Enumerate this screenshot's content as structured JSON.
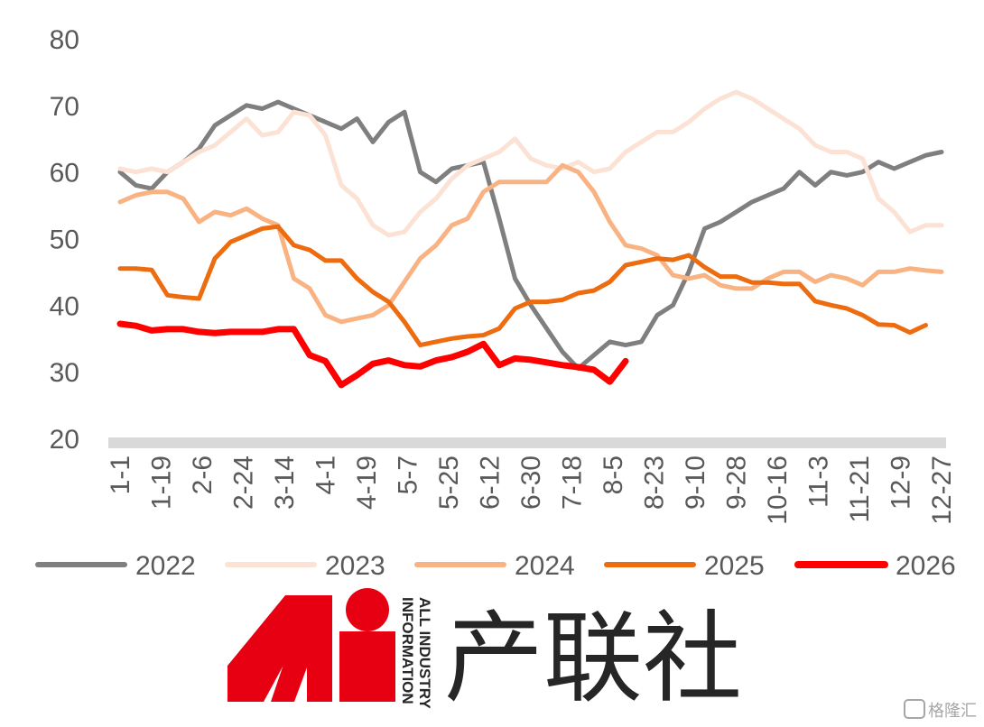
{
  "chart_data": {
    "type": "line",
    "title": "",
    "xlabel": "",
    "ylabel": "",
    "ylim": [
      20,
      80
    ],
    "yticks": [
      20,
      30,
      40,
      50,
      60,
      70,
      80
    ],
    "grid": false,
    "legend_position": "bottom",
    "x_tick_labels": [
      "1-1",
      "1-19",
      "2-6",
      "2-24",
      "3-14",
      "4-1",
      "4-19",
      "5-7",
      "5-25",
      "6-12",
      "6-30",
      "7-18",
      "8-5",
      "8-23",
      "9-10",
      "9-28",
      "10-16",
      "11-3",
      "11-21",
      "12-9",
      "12-27"
    ],
    "x_points_per_year": 53,
    "series": [
      {
        "name": "2022",
        "color": "#7f7f7f",
        "width": 5,
        "values": [
          60,
          58,
          57.5,
          60,
          61.5,
          63.5,
          67,
          68.5,
          70,
          69.5,
          70.5,
          69.5,
          68.5,
          67.5,
          66.5,
          68,
          64.5,
          67.5,
          69,
          60,
          58.5,
          60.5,
          61,
          61.5,
          53,
          44,
          40,
          36.5,
          33,
          30.5,
          32.5,
          34.5,
          34,
          34.5,
          38.5,
          40,
          45,
          51.5,
          52.5,
          54,
          55.5,
          56.5,
          57.5,
          60,
          58,
          60,
          59.5,
          60,
          61.5,
          60.5,
          61.5,
          62.5,
          63
        ]
      },
      {
        "name": "2023",
        "color": "#fbe2d5",
        "width": 5,
        "values": [
          60.5,
          60,
          60.5,
          60,
          61.5,
          63,
          64,
          66,
          68,
          65.5,
          66,
          69,
          68.5,
          65.5,
          58,
          56,
          52,
          50.5,
          51,
          54,
          56,
          59,
          61,
          62,
          63,
          65,
          62,
          61,
          60.5,
          61.5,
          60,
          60.5,
          63,
          64.5,
          66,
          66,
          67.5,
          69.5,
          71,
          72,
          71,
          69.5,
          68,
          66.5,
          64,
          63,
          63,
          62,
          56,
          54,
          51,
          52,
          52
        ]
      },
      {
        "name": "2024",
        "color": "#f9b383",
        "width": 5,
        "values": [
          55.5,
          56.5,
          57,
          57,
          56,
          52.5,
          54,
          53.5,
          54.5,
          53,
          52,
          44,
          42.5,
          38.5,
          37.5,
          38,
          38.5,
          40,
          43.5,
          47,
          49,
          52,
          53,
          57,
          58.5,
          58.5,
          58.5,
          58.5,
          61,
          60,
          57,
          52.5,
          49,
          48.5,
          47.5,
          44.5,
          44,
          44.5,
          43,
          42.5,
          42.5,
          44,
          45,
          45,
          43.5,
          44.5,
          44,
          43,
          45,
          45,
          45.5,
          45.2,
          45
        ]
      },
      {
        "name": "2025",
        "color": "#ed6c0f",
        "width": 5,
        "values": [
          45.5,
          45.5,
          45.3,
          41.5,
          41.2,
          41,
          47,
          49.5,
          50.5,
          51.5,
          51.8,
          49,
          48.3,
          46.7,
          46.7,
          44,
          42,
          40.5,
          37.5,
          34,
          34.5,
          35,
          35.3,
          35.5,
          36.5,
          39.5,
          40.5,
          40.5,
          40.8,
          41.8,
          42.2,
          43.5,
          46,
          46.5,
          47,
          46.8,
          47.5,
          45.7,
          44.3,
          44.3,
          43.4,
          43.4,
          43.2,
          43.2,
          40.6,
          40,
          39.5,
          38.5,
          37.1,
          37,
          35.9,
          37
        ]
      },
      {
        "name": "2026",
        "color": "#ff0000",
        "width": 7,
        "values": [
          37.2,
          36.9,
          36.2,
          36.4,
          36.4,
          36,
          35.8,
          36,
          36,
          36,
          36.4,
          36.4,
          32.5,
          31.6,
          28,
          29.5,
          31.2,
          31.7,
          31,
          30.8,
          31.7,
          32.2,
          33,
          34.2,
          31,
          32,
          31.8,
          31.4,
          31,
          30.7,
          30.3,
          28.5,
          31.6
        ]
      }
    ]
  },
  "brand": {
    "logo_letters": "Ai",
    "name_cn": "产联社",
    "tagline_line1": "ALL INDUSTRY",
    "tagline_line2": "INFORMATION"
  },
  "watermark": {
    "text": "格隆汇"
  }
}
